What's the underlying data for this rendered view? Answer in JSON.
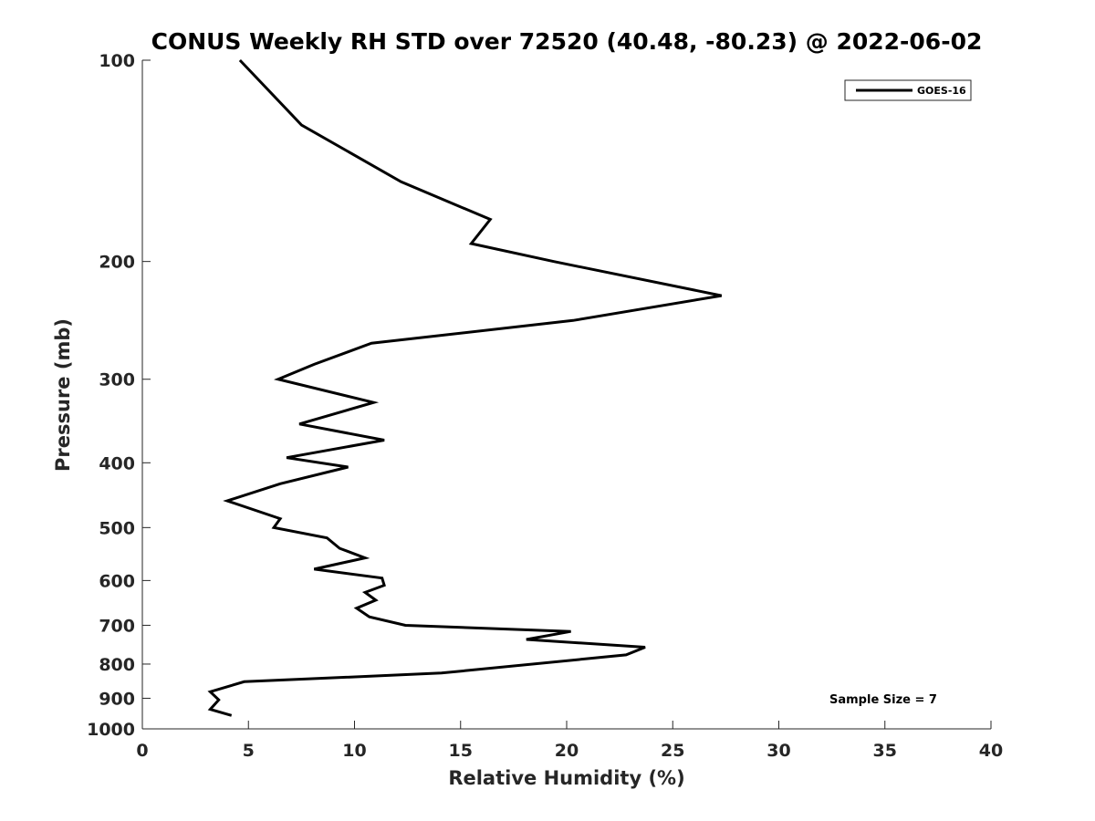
{
  "chart_data": {
    "type": "line",
    "title": "CONUS Weekly RH STD over 72520 (40.48, -80.23) @ 2022-06-02",
    "xlabel": "Relative Humidity (%)",
    "ylabel": "Pressure (mb)",
    "xlim": [
      0,
      40
    ],
    "ylim": [
      100,
      1000
    ],
    "yscale": "log",
    "y_reversed": true,
    "x_ticks": [
      0,
      5,
      10,
      15,
      20,
      25,
      30,
      35,
      40
    ],
    "y_ticks": [
      100,
      200,
      300,
      400,
      500,
      600,
      700,
      800,
      900,
      1000
    ],
    "grid": false,
    "legend_position": "top-right",
    "line_color": "#000000",
    "annotation": "Sample Size = 7",
    "series": [
      {
        "name": "GOES-16",
        "x": [
          4.6,
          7.5,
          12.2,
          16.4,
          15.5,
          19.4,
          27.3,
          20.3,
          10.8,
          8.1,
          6.4,
          10.9,
          7.4,
          11.4,
          6.8,
          9.7,
          6.5,
          4.0,
          6.5,
          6.2,
          8.7,
          9.3,
          10.5,
          8.1,
          11.3,
          11.4,
          10.5,
          11.0,
          10.1,
          10.7,
          12.4,
          20.2,
          18.1,
          23.7,
          22.8,
          14.1,
          4.8,
          3.2,
          3.6,
          3.2,
          4.2
        ],
        "y": [
          100,
          125,
          152,
          173,
          188,
          200,
          225,
          245,
          265,
          285,
          300,
          325,
          350,
          370,
          393,
          406,
          430,
          456,
          485,
          500,
          518,
          537,
          555,
          577,
          595,
          610,
          625,
          642,
          660,
          680,
          700,
          715,
          735,
          755,
          775,
          825,
          850,
          880,
          905,
          935,
          955
        ]
      }
    ]
  }
}
